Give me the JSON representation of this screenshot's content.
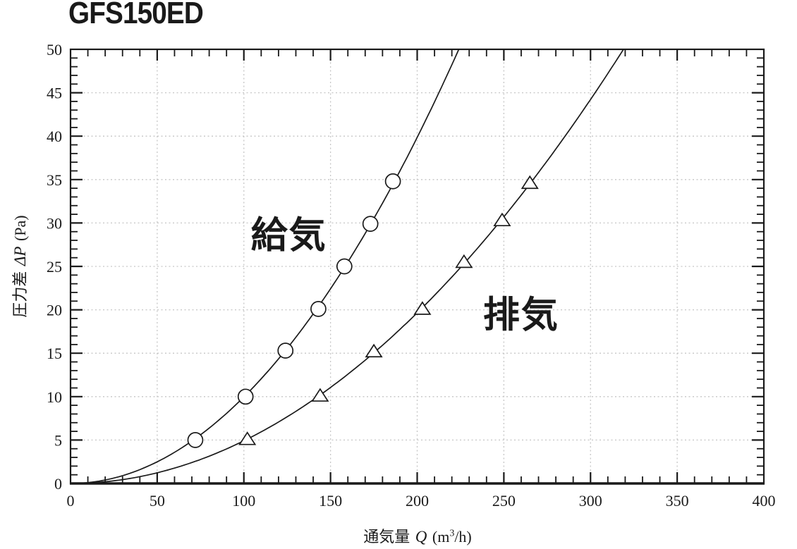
{
  "title": "GFS150ED",
  "chart_data": {
    "type": "line",
    "title": "GFS150ED",
    "x_axis": {
      "label_name": "通気量",
      "label_symbol": "Q",
      "label_unit_open": "(m",
      "label_unit_sup": "3",
      "label_unit_close": "/h)",
      "min": 0,
      "max": 400,
      "major_ticks": [
        0,
        50,
        100,
        150,
        200,
        250,
        300,
        350,
        400
      ],
      "minor_step": 10
    },
    "y_axis": {
      "label_name": "圧力差",
      "label_symbol": "ΔP",
      "label_unit": "(Pa)",
      "min": 0,
      "max": 50,
      "major_ticks": [
        0,
        5,
        10,
        15,
        20,
        25,
        30,
        35,
        40,
        45,
        50
      ],
      "minor_step": 1
    },
    "grid": {
      "show": true,
      "color": "#c6c6c6",
      "style": "dashed"
    },
    "line_color": "#1a1a1a",
    "background": "#ffffff",
    "series": [
      {
        "name": "給気",
        "marker": "circle",
        "points": [
          [
            72,
            5
          ],
          [
            101,
            10
          ],
          [
            124,
            15.3
          ],
          [
            143,
            20.1
          ],
          [
            158,
            25
          ],
          [
            173,
            29.9
          ],
          [
            186,
            34.8
          ]
        ],
        "curve_top_exit_q": 224,
        "label_at": {
          "q": 126,
          "p": 29
        }
      },
      {
        "name": "排気",
        "marker": "triangle",
        "points": [
          [
            102,
            5.1
          ],
          [
            144,
            10.1
          ],
          [
            175,
            15.2
          ],
          [
            203,
            20.1
          ],
          [
            227,
            25.5
          ],
          [
            249,
            30.3
          ],
          [
            265,
            34.6
          ]
        ],
        "curve_top_exit_q": 319,
        "label_at": {
          "q": 260,
          "p": 19.8
        }
      }
    ]
  }
}
